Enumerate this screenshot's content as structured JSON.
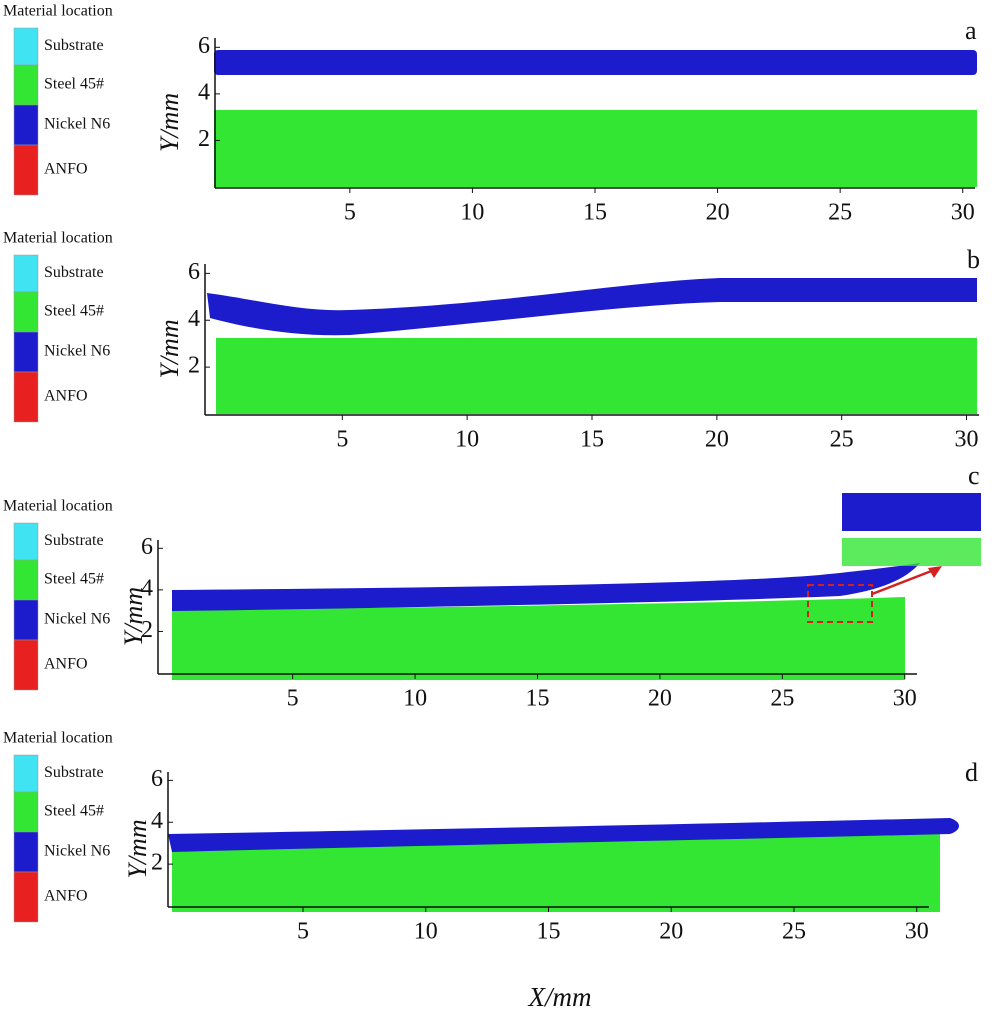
{
  "chart_data": {
    "type": "material-location",
    "legend_title": "Material location",
    "legend": [
      {
        "name": "Substrate",
        "color": "#3fe3f2"
      },
      {
        "name": "Steel 45#",
        "color": "#33e633"
      },
      {
        "name": "Nickel N6",
        "color": "#1c1ccc"
      },
      {
        "name": "ANFO",
        "color": "#e82020"
      }
    ],
    "x_label": "X/mm",
    "panels": [
      {
        "label": "a",
        "y_label": "Y/mm",
        "xlim": [
          -0.5,
          30.5
        ],
        "ylim": [
          0,
          6.4
        ],
        "xticks": [
          5,
          10,
          15,
          20,
          25,
          30
        ],
        "yticks": [
          2,
          4,
          6
        ]
      },
      {
        "label": "b",
        "y_label": "Y/mm",
        "xlim": [
          -0.5,
          30.5
        ],
        "ylim": [
          0,
          6.4
        ],
        "xticks": [
          5,
          10,
          15,
          20,
          25,
          30
        ],
        "yticks": [
          2,
          4,
          6
        ]
      },
      {
        "label": "c",
        "y_label": "Y/mm",
        "xlim": [
          -0.5,
          30.5
        ],
        "ylim": [
          0,
          6.4
        ],
        "xticks": [
          5,
          10,
          15,
          20,
          25,
          30
        ],
        "yticks": [
          2,
          4,
          6
        ]
      },
      {
        "label": "d",
        "y_label": "Y/mm",
        "xlim": [
          -0.5,
          30.5
        ],
        "ylim": [
          0,
          6.4
        ],
        "xticks": [
          5,
          10,
          15,
          20,
          25,
          30
        ],
        "yticks": [
          2,
          4,
          6
        ]
      }
    ]
  }
}
